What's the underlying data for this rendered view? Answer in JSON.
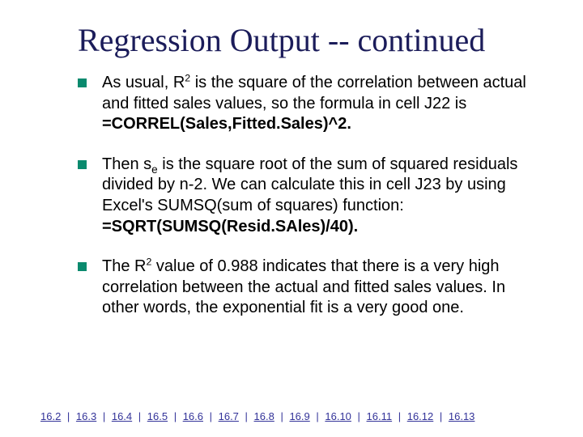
{
  "colors": {
    "title": "#1b1c5a",
    "bullet_square": "#0a8a6e",
    "body_text": "#000000",
    "link": "#333399",
    "background": "#ffffff"
  },
  "typography": {
    "title_family": "Times New Roman",
    "title_size_pt": 40,
    "title_weight": 400,
    "body_family": "Arial",
    "body_size_pt": 20,
    "footer_size_pt": 13
  },
  "title": "Regression Output -- continued",
  "bullets": [
    {
      "pre": "As usual, R",
      "sup1": "2",
      "mid": " is the square of the correlation between actual and fitted sales values, so the formula in cell J22 is   ",
      "bold": "=CORREL(Sales,Fitted.Sales)^2."
    },
    {
      "pre": "Then s",
      "sub1": "e",
      "mid": " is the square root of the sum of squared residuals divided by n-2. We can calculate this in cell J23 by using Excel's SUMSQ(sum of squares) function:  ",
      "bold": "=SQRT(SUMSQ(Resid.SAles)/40)."
    },
    {
      "pre": "The R",
      "sup1": "2",
      "mid": " value of 0.988 indicates that there is a very high correlation between the actual and fitted sales values. In other words, the exponential fit is a very good one.",
      "bold": ""
    }
  ],
  "footer_links": [
    "16.2",
    "16.3",
    "16.4",
    "16.5",
    "16.6",
    "16.7",
    "16.8",
    "16.9",
    "16.10",
    "16.11",
    "16.12",
    "16.13"
  ],
  "footer_separator": " | "
}
